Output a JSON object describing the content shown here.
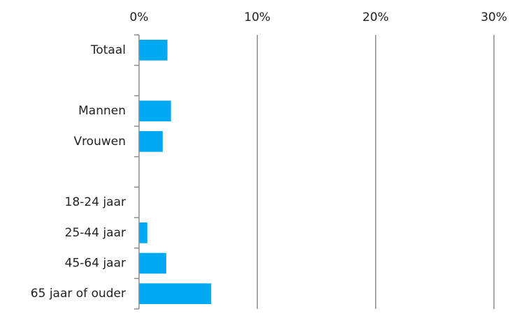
{
  "chart_data": {
    "type": "bar",
    "orientation": "horizontal",
    "categories": [
      "Totaal",
      null,
      "Mannen",
      "Vrouwen",
      null,
      "18-24 jaar",
      "25-44 jaar",
      "45-64 jaar",
      "65 jaar of ouder"
    ],
    "values": [
      2.4,
      null,
      2.7,
      2.0,
      null,
      0,
      0.7,
      2.3,
      6.1
    ],
    "color": "#00a9f1",
    "xlim": [
      0,
      30
    ],
    "xticks": [
      {
        "value": 0,
        "label": "0%"
      },
      {
        "value": 10,
        "label": "10%"
      },
      {
        "value": 20,
        "label": "20%"
      },
      {
        "value": 30,
        "label": "30%"
      }
    ],
    "grid": true
  }
}
